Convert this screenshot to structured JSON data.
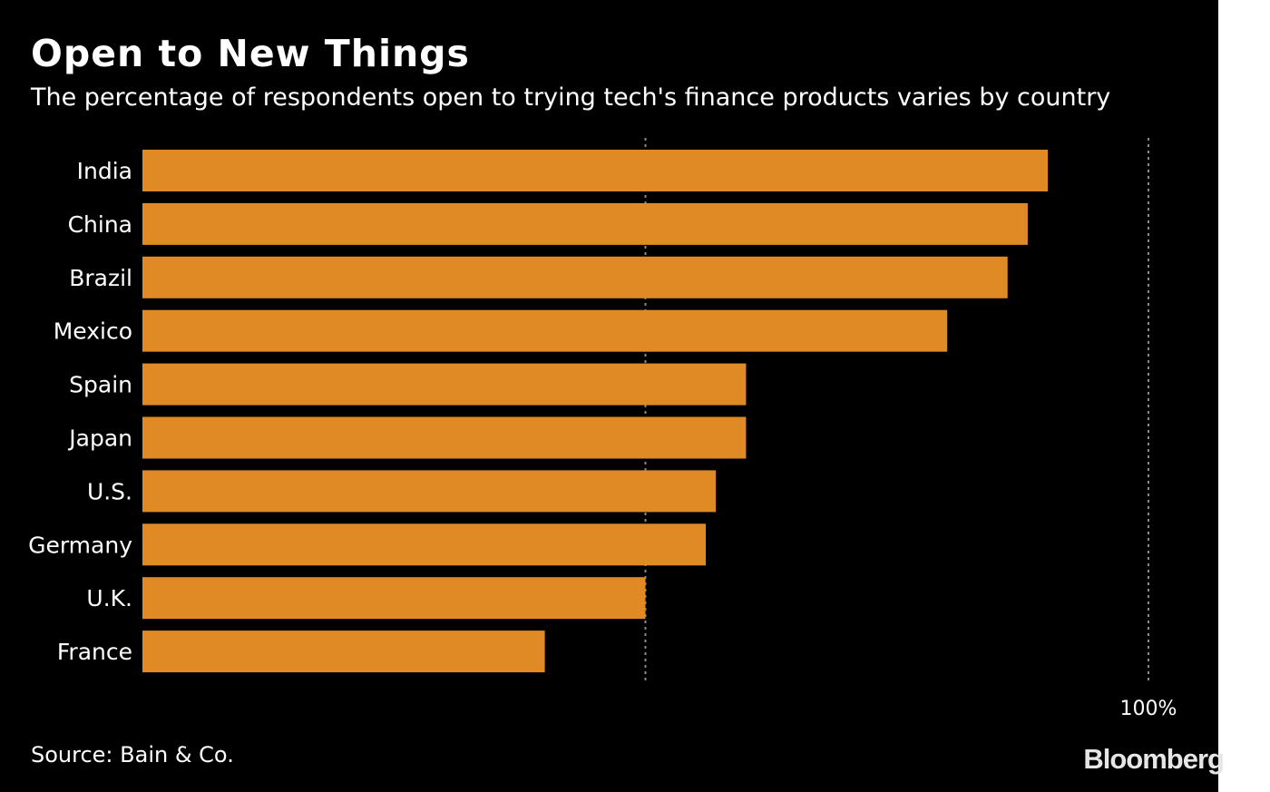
{
  "header": {
    "title": "Open to New Things",
    "subtitle": "The percentage of respondents open to trying tech's finance products varies by country"
  },
  "footer": {
    "source": "Source: Bain & Co.",
    "logo": "Bloomberg"
  },
  "colors": {
    "background": "#000000",
    "bar": "#df8a25",
    "text": "#ffffff",
    "gridline": "#8a8a8a"
  },
  "chart_data": {
    "type": "bar",
    "orientation": "horizontal",
    "title": "Open to New Things",
    "subtitle": "The percentage of respondents open to trying tech's finance products varies by country",
    "categories": [
      "India",
      "China",
      "Brazil",
      "Mexico",
      "Spain",
      "Japan",
      "U.S.",
      "Germany",
      "U.K.",
      "France"
    ],
    "values": [
      90,
      88,
      86,
      80,
      60,
      60,
      57,
      56,
      50,
      40
    ],
    "unit": "%",
    "xlim": [
      0,
      100
    ],
    "gridlines": [
      50,
      100
    ],
    "tick_labels": [
      {
        "value": 100,
        "label": "100%"
      }
    ],
    "xlabel": "",
    "ylabel": "",
    "grid": true,
    "legend": "none"
  }
}
